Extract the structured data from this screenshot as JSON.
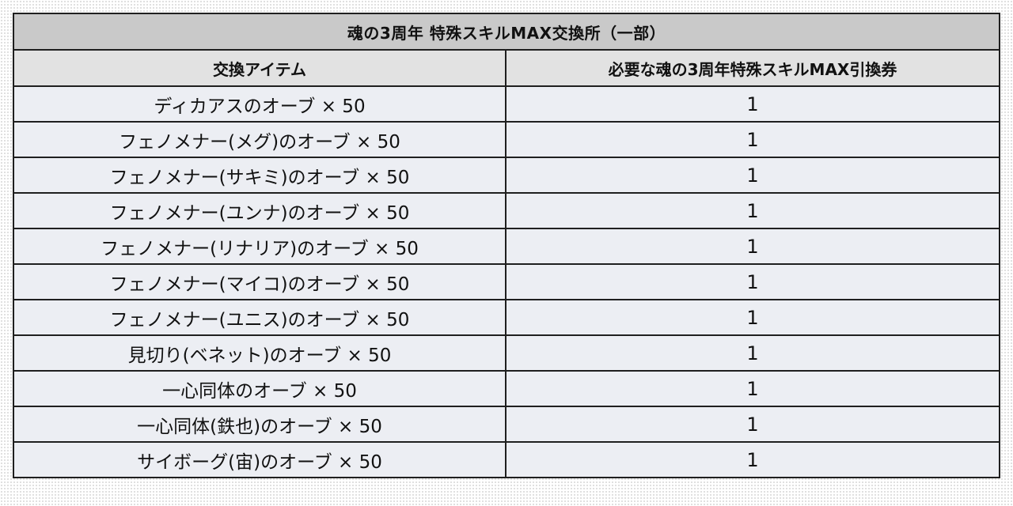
{
  "table": {
    "title": "魂の3周年 特殊スキルMAX交換所（一部）",
    "headers": [
      "交換アイテム",
      "必要な魂の3周年特殊スキルMAX引換券"
    ],
    "rows": [
      {
        "item": "ディカアスのオーブ × 50",
        "qty": "1"
      },
      {
        "item": "フェノメナー(メグ)のオーブ × 50",
        "qty": "1"
      },
      {
        "item": "フェノメナー(サキミ)のオーブ × 50",
        "qty": "1"
      },
      {
        "item": "フェノメナー(ユンナ)のオーブ × 50",
        "qty": "1"
      },
      {
        "item": "フェノメナー(リナリア)のオーブ × 50",
        "qty": "1"
      },
      {
        "item": "フェノメナー(マイコ)のオーブ × 50",
        "qty": "1"
      },
      {
        "item": "フェノメナー(ユニス)のオーブ × 50",
        "qty": "1"
      },
      {
        "item": "見切り(ベネット)のオーブ × 50",
        "qty": "1"
      },
      {
        "item": "一心同体のオーブ × 50",
        "qty": "1"
      },
      {
        "item": "一心同体(鉄也)のオーブ × 50",
        "qty": "1"
      },
      {
        "item": "サイボーグ(宙)のオーブ × 50",
        "qty": "1"
      }
    ]
  }
}
